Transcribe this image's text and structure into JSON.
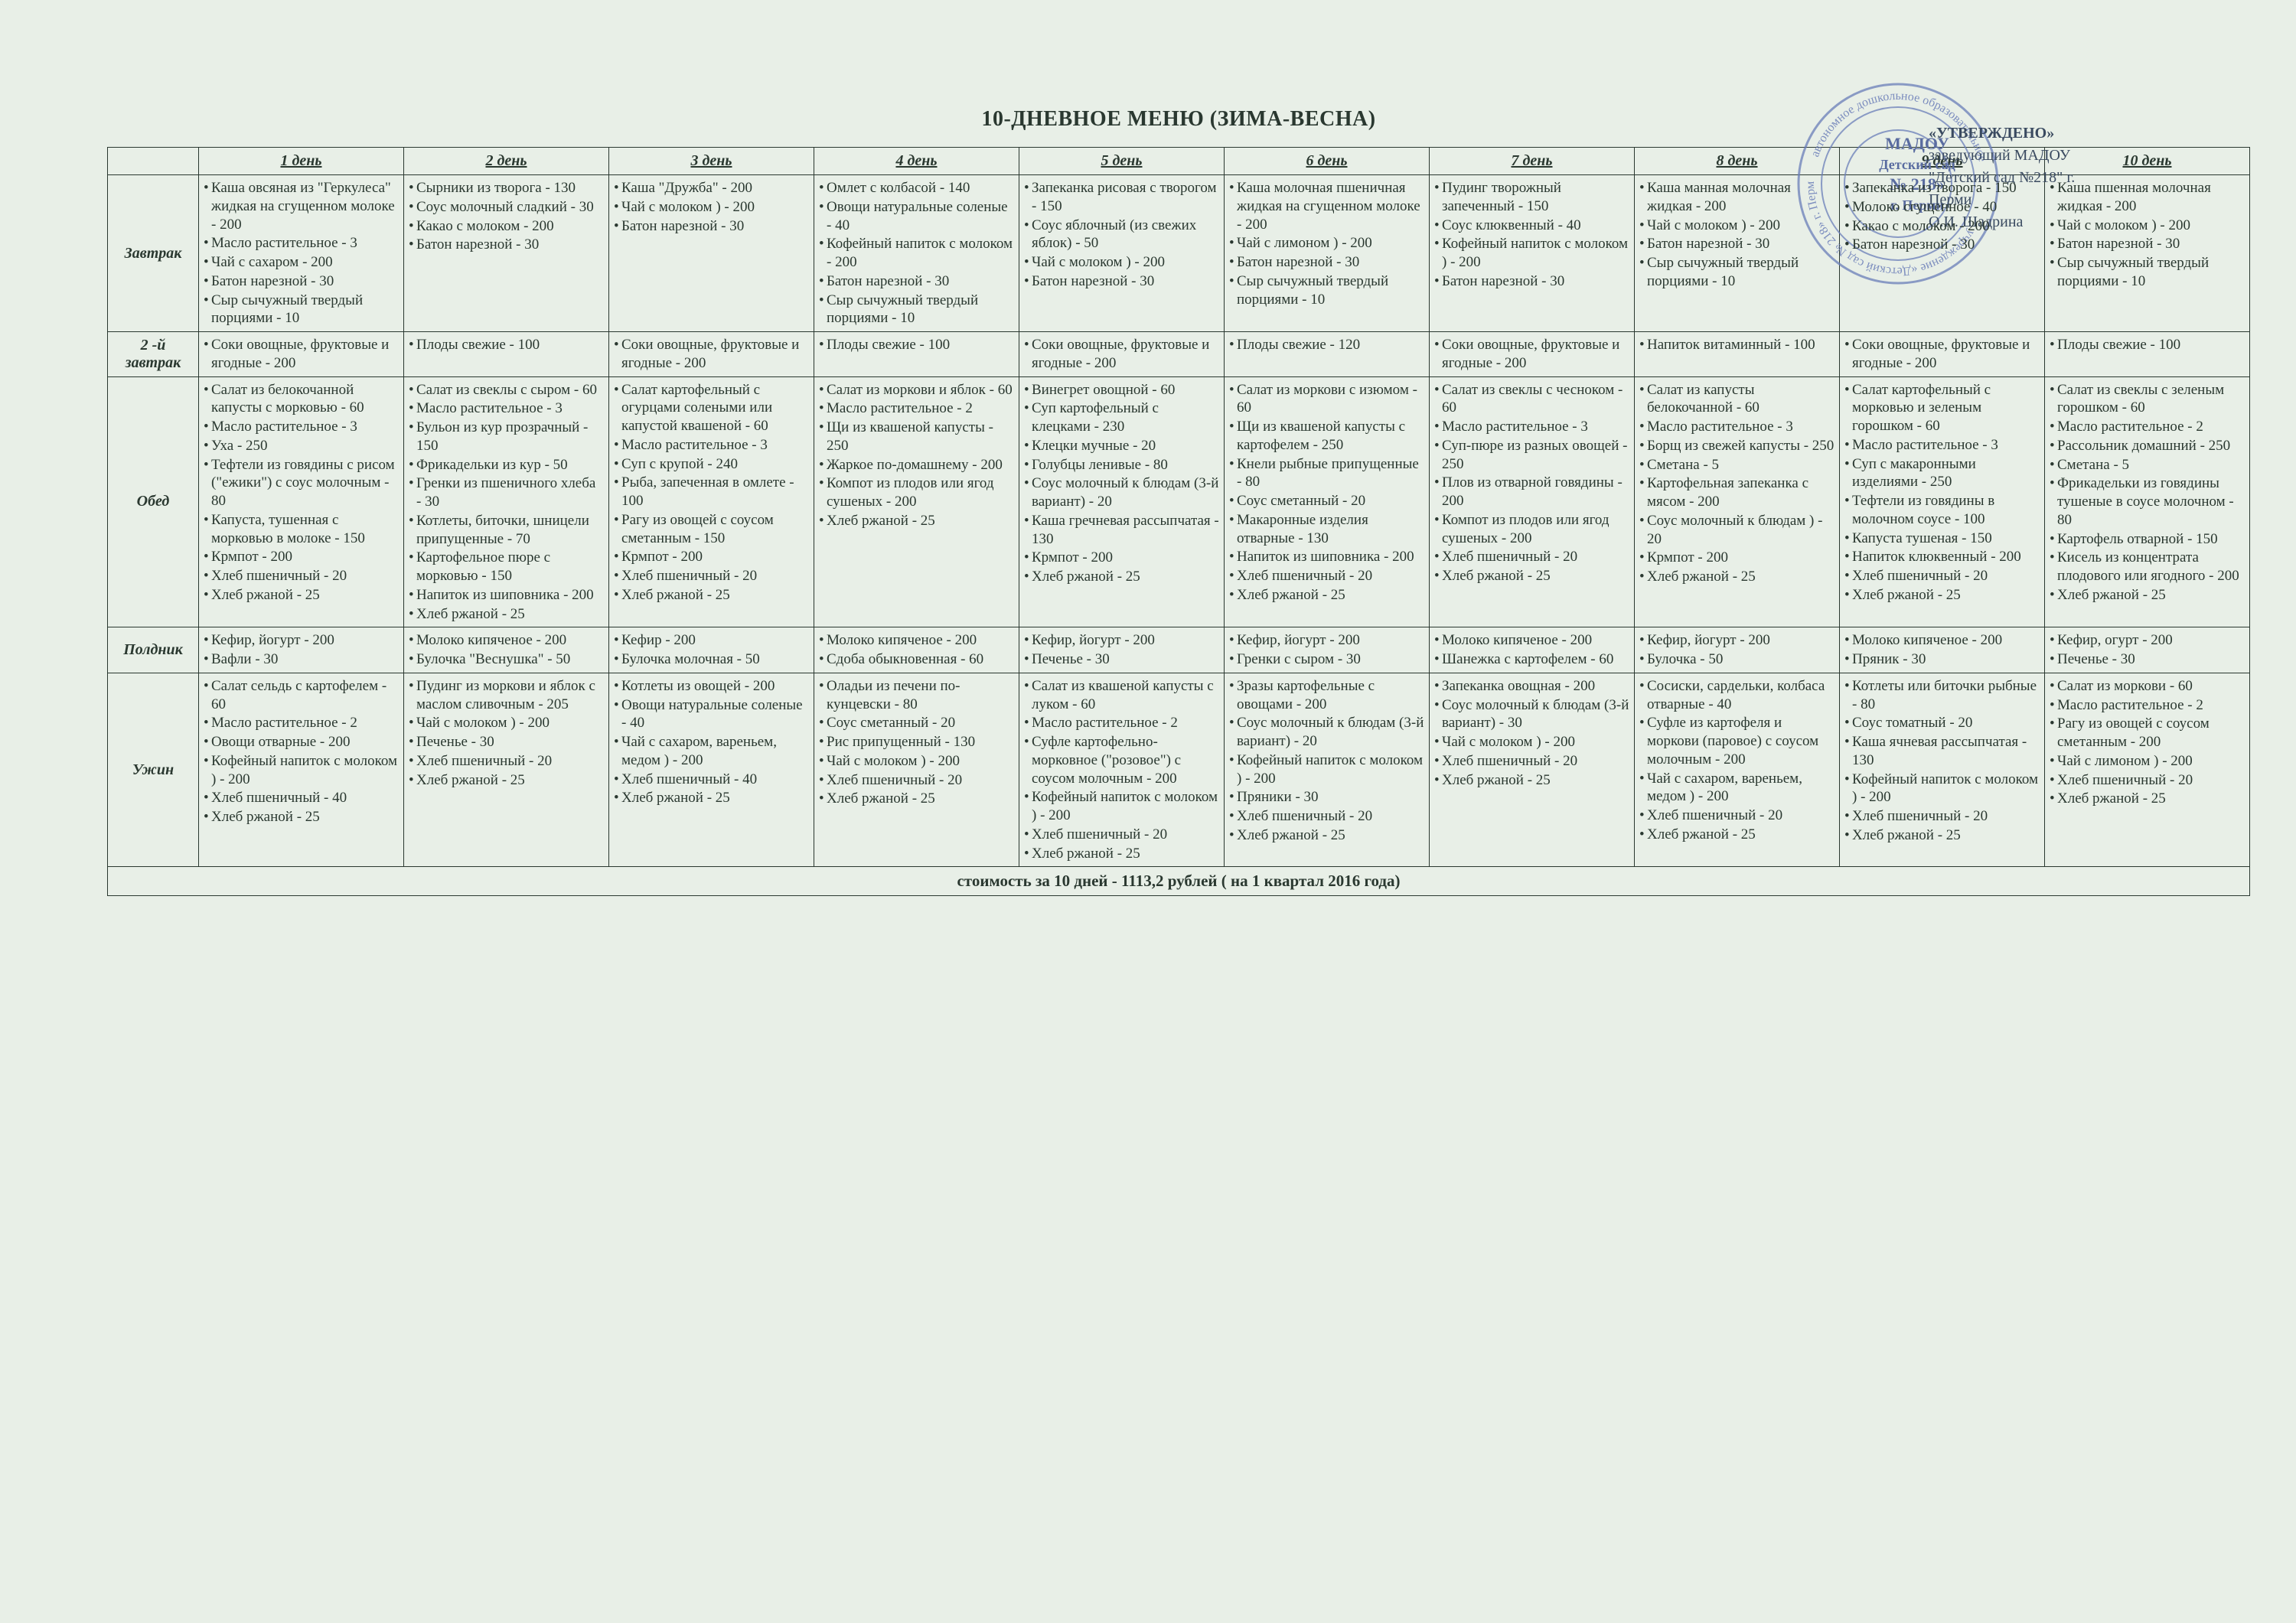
{
  "title": "10-ДНЕВНОЕ МЕНЮ (ЗИМА-ВЕСНА)",
  "approval": {
    "line1": "«УТВЕРЖДЕНО»",
    "line2": "заведующий МАДОУ \"Детский сад №218\" г. Перми",
    "line3": "О.И. Шадрина"
  },
  "stamp_center": {
    "l1": "МАДОУ",
    "l2": "Детский сад",
    "l3": "№ 218»",
    "l4": "г. Перми"
  },
  "stamp_colors": {
    "ring": "#6a7db8",
    "text": "#5a6ca0"
  },
  "columns": [
    "",
    "1 день",
    "2 день",
    "3 день",
    "4 день",
    "5 день",
    "6 день",
    "7 день",
    "8 день",
    "9 день",
    "10 день"
  ],
  "rows": [
    {
      "meal": "Завтрак",
      "cells": [
        [
          "Каша овсяная из \"Геркулеса\" жидкая на сгущенном молоке - 200",
          "Масло растительное - 3",
          "Чай с сахаром - 200",
          "Батон нарезной - 30",
          "Сыр сычужный твердый порциями - 10"
        ],
        [
          "Сырники из творога - 130",
          "Соус молочный сладкий - 30",
          "Какао с молоком   - 200",
          "Батон нарезной - 30"
        ],
        [
          "Каша \"Дружба\" - 200",
          "Чай с молоком  ) - 200",
          "Батон нарезной - 30"
        ],
        [
          "Омлет с колбасой  - 140",
          "Овощи натуральные соленые - 40",
          "Кофейный напиток с молоком - 200",
          "Батон нарезной - 30",
          "Сыр сычужный твердый порциями - 10"
        ],
        [
          "Запеканка рисовая с творогом - 150",
          "Соус яблочный (из свежих яблок) - 50",
          "Чай с молоком ) - 200",
          "Батон нарезной - 30"
        ],
        [
          "Каша молочная пшеничная жидкая на сгущенном молоке - 200",
          "Чай с лимоном  ) - 200",
          "Батон нарезной - 30",
          "Сыр сычужный твердый порциями - 10"
        ],
        [
          "Пудинг творожный запеченный - 150",
          "Соус клюквенный - 40",
          "Кофейный напиток с молоком  ) - 200",
          "Батон нарезной - 30"
        ],
        [
          "Каша манная молочная жидкая - 200",
          "Чай с молоком  ) - 200",
          "Батон нарезной - 30",
          "Сыр сычужный твердый порциями - 10"
        ],
        [
          "Запеканка из творога - 150",
          "Молоко сгущенное - 40",
          "Какао с молоком   - 200",
          "Батон нарезной - 30"
        ],
        [
          "Каша пшенная молочная жидкая - 200",
          "Чай с молоком  ) - 200",
          "Батон нарезной - 30",
          "Сыр сычужный твердый порциями - 10"
        ]
      ]
    },
    {
      "meal": "2 -й завтрак",
      "cells": [
        [
          "Соки овощные, фруктовые и ягодные - 200"
        ],
        [
          "Плоды  свежие - 100"
        ],
        [
          "Соки овощные, фруктовые и ягодные - 200"
        ],
        [
          "Плоды  свежие - 100"
        ],
        [
          "Соки овощные, фруктовые и ягодные - 200"
        ],
        [
          "Плоды  свежие - 120"
        ],
        [
          "Соки овощные, фруктовые и ягодные - 200"
        ],
        [
          "Напиток витаминный - 100"
        ],
        [
          "Соки овощные, фруктовые и ягодные - 200"
        ],
        [
          "Плоды  свежие - 100"
        ]
      ]
    },
    {
      "meal": "Обед",
      "cells": [
        [
          "Салат из белокочанной капусты с морковью - 60",
          "Масло растительное - 3",
          "Уха  - 250",
          "Тефтели из говядины с рисом (\"ежики\") с соус молочным - 80",
          "Капуста, тушенная с морковью в молоке - 150",
          "Крмпот - 200",
          "Хлеб пшеничный   - 20",
          "Хлеб ржаной - 25"
        ],
        [
          "Салат из свеклы с сыром - 60",
          "Масло растительное - 3",
          "Бульон из кур прозрачный - 150",
          "Фрикадельки из кур - 50",
          "Гренки из пшеничного хлеба - 30",
          "Котлеты, биточки, шницели припущенные - 70",
          "Картофельное пюре с морковью - 150",
          "Напиток из шиповника - 200",
          "Хлеб ржаной - 25"
        ],
        [
          "Салат картофельный с огурцами солеными или капустой квашеной - 60",
          "Масло растительное - 3",
          "Суп с крупой - 240",
          "Рыба, запеченная в омлете - 100",
          "Рагу из овощей с соусом сметанным - 150",
          "Крмпот - 200",
          "Хлеб пшеничный   - 20",
          "Хлеб ржаной - 25"
        ],
        [
          "Салат из моркови и яблок - 60",
          "Масло растительное - 2",
          "Щи из квашеной капусты - 250",
          "Жаркое по-домашнему - 200",
          "Компот из плодов или ягод сушеных - 200",
          "Хлеб ржаной - 25"
        ],
        [
          "Винегрет овощной - 60",
          "Суп картофельный с клецками - 230",
          "Клецки мучные - 20",
          "Голубцы ленивые - 80",
          "Соус молочный к блюдам (3-й вариант) - 20",
          "Каша гречневая рассыпчатая - 130",
          "Крмпот - 200",
          "Хлеб ржаной - 25"
        ],
        [
          "Салат из моркови с изюмом - 60",
          "Щи из квашеной капусты с картофелем - 250",
          "Кнели рыбные припущенные  - 80",
          "Соус сметанный - 20",
          "Макаронные изделия отварные - 130",
          "Напиток из шиповника - 200",
          "Хлеб пшеничный   - 20",
          "Хлеб ржаной - 25"
        ],
        [
          "Салат из свеклы с чесноком - 60",
          "Масло растительное - 3",
          "Суп-пюре из разных овощей - 250",
          "Плов из отварной говядины - 200",
          "Компот из плодов или ягод сушеных - 200",
          "Хлеб пшеничный   - 20",
          "Хлеб ржаной - 25"
        ],
        [
          "Салат из капусты белокочанной - 60",
          "Масло растительное - 3",
          "Борщ из свежей капусты - 250",
          "Сметана - 5",
          "Картофельная запеканка с мясом - 200",
          "Соус молочный к блюдам  ) - 20",
          "Крмпот - 200",
          "Хлеб ржаной - 25"
        ],
        [
          "Салат картофельный с морковью и зеленым горошком - 60",
          "Масло растительное - 3",
          "Суп с макаронными изделиями - 250",
          "Тефтели из говядины в молочном соусе - 100",
          "Капуста тушеная - 150",
          "Напиток клюквенный - 200",
          "Хлеб пшеничный   - 20",
          "Хлеб ржаной - 25"
        ],
        [
          "Салат из свеклы с зеленым горошком - 60",
          "Масло растительное - 2",
          "Рассольник домашний - 250",
          "Сметана - 5",
          "Фрикадельки из говядины тушеные в соусе молочном - 80",
          "Картофель отварной - 150",
          "Кисель из концентрата плодового или ягодного - 200",
          "Хлеб ржаной - 25"
        ]
      ]
    },
    {
      "meal": "Полдник",
      "cells": [
        [
          "Кефир, йогурт - 200",
          "Вафли  - 30"
        ],
        [
          "Молоко кипяченое - 200",
          "Булочка \"Веснушка\" - 50"
        ],
        [
          "Кефир - 200",
          "Булочка молочная - 50"
        ],
        [
          "Молоко кипяченое - 200",
          "Сдоба обыкновенная - 60"
        ],
        [
          "Кефир, йогурт - 200",
          "Печенье - 30"
        ],
        [
          "Кефир, йогурт - 200",
          "Гренки с сыром - 30"
        ],
        [
          "Молоко кипяченое - 200",
          "Шанежка с картофелем - 60"
        ],
        [
          "Кефир, йогурт - 200",
          "Булочка  - 50"
        ],
        [
          "Молоко кипяченое - 200",
          "Пряник - 30"
        ],
        [
          "Кефир, огурт - 200",
          "Печенье - 30"
        ]
      ]
    },
    {
      "meal": "Ужин",
      "cells": [
        [
          "Салат сельдь с картофелем - 60",
          "Масло растительное - 2",
          "Овощи отварные  - 200",
          "Кофейный напиток с молоком  ) - 200",
          "Хлеб пшеничный   - 40",
          "Хлеб ржаной - 25"
        ],
        [
          "Пудинг из моркови и яблок с маслом сливочным - 205",
          "Чай с молоком  ) - 200",
          "Печенье - 30",
          "Хлеб пшеничный   - 20",
          "Хлеб ржаной - 25"
        ],
        [
          "Котлеты из овощей - 200",
          "Овощи натуральные соленые - 40",
          "Чай с сахаром, вареньем, медом  ) - 200",
          "Хлеб пшеничный   - 40",
          "Хлеб ржаной - 25"
        ],
        [
          "Оладьи из печени по-кунцевски - 80",
          "Соус сметанный - 20",
          "Рис припущенный - 130",
          "Чай с молоком  ) - 200",
          "Хлеб пшеничный   - 20",
          "Хлеб ржаной - 25"
        ],
        [
          "Салат из квашеной капусты с луком - 60",
          "Масло растительное - 2",
          "Суфле картофельно-морковное (\"розовое\") с соусом молочным - 200",
          "Кофейный напиток с молоком  ) - 200",
          "Хлеб пшеничный   - 20",
          "Хлеб ржаной - 25"
        ],
        [
          "Зразы картофельные с овощами - 200",
          "Соус молочный к блюдам (3-й вариант) - 20",
          "Кофейный напиток с молоком  ) - 200",
          "Пряники - 30",
          "Хлеб пшеничный   - 20",
          "Хлеб ржаной - 25"
        ],
        [
          "Запеканка овощная - 200",
          "Соус молочный к блюдам (3-й вариант) - 30",
          "Чай с молоком  ) - 200",
          "Хлеб пшеничный   - 20",
          "Хлеб ржаной - 25"
        ],
        [
          "Сосиски, сардельки, колбаса отварные - 40",
          "Суфле из картофеля и моркови (паровое) с соусом молочным - 200",
          "Чай с сахаром, вареньем, медом  ) - 200",
          "Хлеб пшеничный   - 20",
          "Хлеб ржаной - 25"
        ],
        [
          "Котлеты или биточки рыбные - 80",
          "Соус томатный - 20",
          "Каша ячневая рассыпчатая - 130",
          "Кофейный напиток с молоком  ) - 200",
          "Хлеб пшеничный   - 20",
          "Хлеб ржаной - 25"
        ],
        [
          "Салат из моркови - 60",
          "Масло растительное - 2",
          "Рагу из овощей с соусом сметанным - 200",
          "Чай с лимоном  ) - 200",
          "Хлеб пшеничный   - 20",
          "Хлеб ржаной - 25"
        ]
      ]
    }
  ],
  "footer": "стоимость за 10 дней - 1113,2 рублей ( на 1 квартал 2016 года)"
}
